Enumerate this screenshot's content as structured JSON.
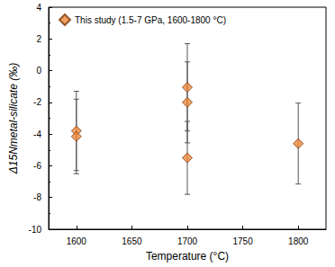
{
  "chart_data": {
    "type": "scatter",
    "x_label": "Temperature (°C)",
    "y_label": "Δ15Nmetal-silicate (‰)",
    "xlim": [
      1575,
      1825
    ],
    "xticks": [
      1600,
      1650,
      1700,
      1750,
      1800
    ],
    "ylim": [
      -10,
      4
    ],
    "yticks": [
      -10,
      -8,
      -6,
      -4,
      -2,
      0,
      2,
      4
    ],
    "grid": false,
    "legend": "upper left",
    "series": [
      {
        "name": "This study (1.5-7 GPa, 1600-1800 °C)",
        "color": "#f08a3c",
        "marker": "diamond",
        "x": [
          1600,
          1600,
          1700,
          1700,
          1700,
          1800
        ],
        "values": [
          -3.8,
          -4.15,
          -1.05,
          -2.0,
          -5.5,
          -4.6
        ],
        "errors": [
          2.5,
          2.35,
          2.75,
          2.55,
          2.3,
          2.55
        ]
      }
    ]
  }
}
